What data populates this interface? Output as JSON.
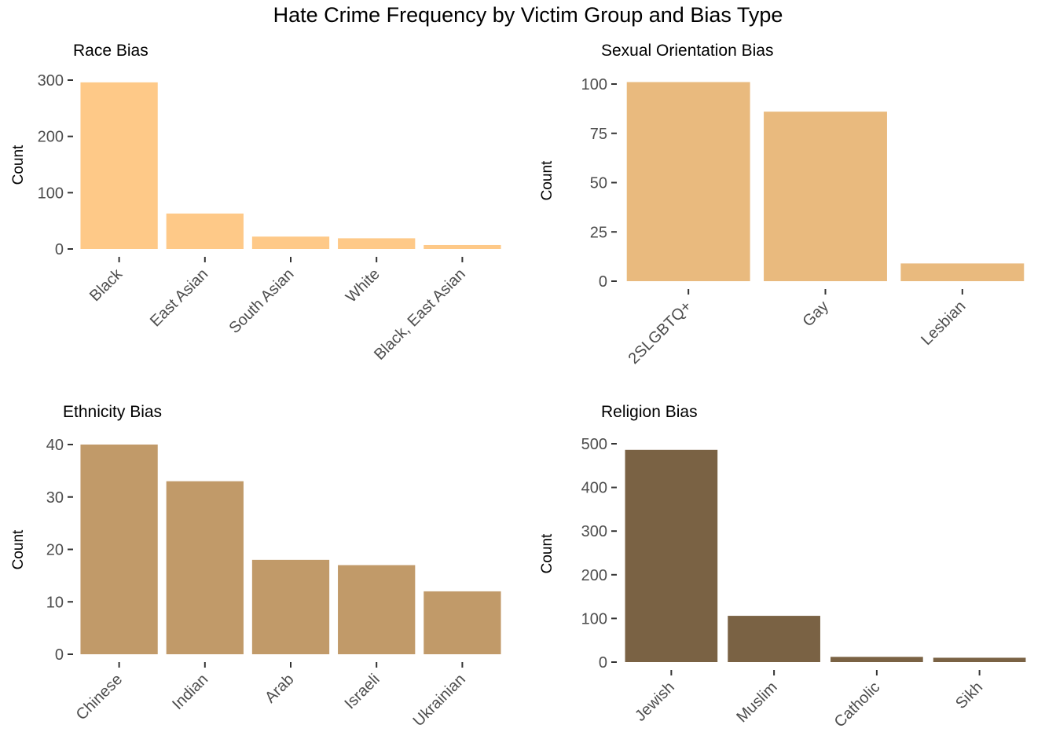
{
  "title": "Hate Crime Frequency by Victim Group and Bias Type",
  "chart_data": [
    {
      "type": "bar",
      "title": "Race Bias",
      "xlabel": "",
      "ylabel": "Count",
      "ylim": [
        0,
        300
      ],
      "yticks": [
        0,
        100,
        200,
        300
      ],
      "color": "#FEC988",
      "categories": [
        "Black",
        "East Asian",
        "South Asian",
        "White",
        "Black, East Asian"
      ],
      "values": [
        296,
        63,
        22,
        19,
        7
      ]
    },
    {
      "type": "bar",
      "title": "Sexual Orientation Bias",
      "xlabel": "",
      "ylabel": "Count",
      "ylim": [
        0,
        100
      ],
      "yticks": [
        0,
        25,
        50,
        75,
        100
      ],
      "color": "#E9BA7E",
      "categories": [
        "2SLGBTQ+",
        "Gay",
        "Lesbian"
      ],
      "values": [
        101,
        86,
        9
      ]
    },
    {
      "type": "bar",
      "title": "Ethnicity Bias",
      "xlabel": "",
      "ylabel": "Count",
      "ylim": [
        0,
        40
      ],
      "yticks": [
        0,
        10,
        20,
        30,
        40
      ],
      "color": "#C19A69",
      "categories": [
        "Chinese",
        "Indian",
        "Arab",
        "Israeli",
        "Ukrainian"
      ],
      "values": [
        40,
        33,
        18,
        17,
        12
      ]
    },
    {
      "type": "bar",
      "title": "Religion Bias",
      "xlabel": "",
      "ylabel": "Count",
      "ylim": [
        0,
        500
      ],
      "yticks": [
        0,
        100,
        200,
        300,
        400,
        500
      ],
      "color": "#7A6244",
      "categories": [
        "Jewish",
        "Muslim",
        "Catholic",
        "Sikh"
      ],
      "values": [
        486,
        106,
        12,
        10
      ]
    }
  ]
}
